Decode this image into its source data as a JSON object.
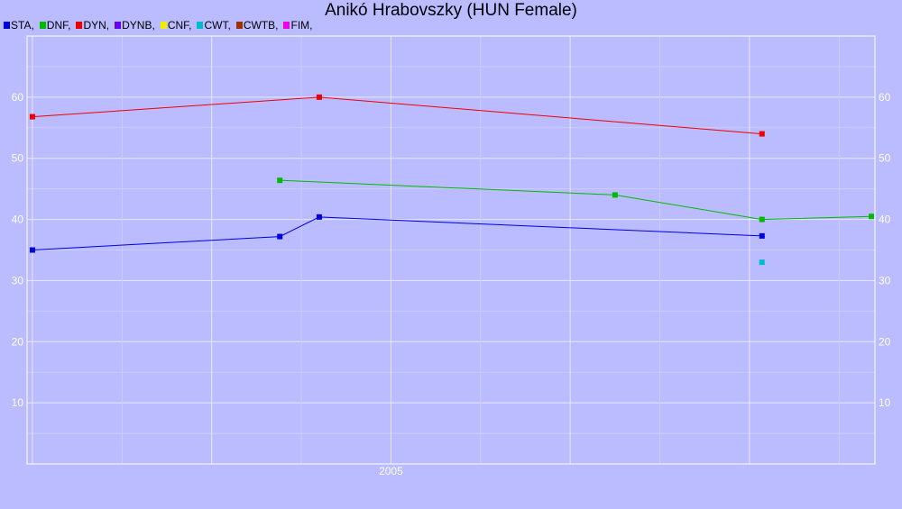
{
  "chart_data": {
    "type": "line",
    "title": "Anikó Hrabovszky (HUN Female)",
    "xlabel": "",
    "ylabel": "",
    "x_axis": {
      "type": "date",
      "ticks": [
        {
          "x": 2005.0,
          "label": "2005"
        }
      ],
      "range": [
        2002.97,
        2007.7
      ]
    },
    "ylim": [
      0,
      70
    ],
    "yticks": [
      10,
      20,
      30,
      40,
      50,
      60
    ],
    "grid": true,
    "legend_position": "top-left",
    "series": [
      {
        "name": "STA",
        "color": "#0000dd",
        "points": [
          [
            2003.0,
            35.0
          ],
          [
            2004.38,
            37.2
          ],
          [
            2004.6,
            40.4
          ],
          [
            2007.07,
            37.3
          ]
        ]
      },
      {
        "name": "DNF",
        "color": "#00bb00",
        "points": [
          [
            2004.38,
            46.4
          ],
          [
            2006.25,
            44.0
          ],
          [
            2007.07,
            40.0
          ],
          [
            2007.68,
            40.5
          ]
        ]
      },
      {
        "name": "DYN",
        "color": "#ee0000",
        "points": [
          [
            2003.0,
            56.8
          ],
          [
            2004.6,
            60.0
          ],
          [
            2007.07,
            54.0
          ]
        ]
      },
      {
        "name": "DYNB",
        "color": "#6600ee",
        "points": []
      },
      {
        "name": "CNF",
        "color": "#eeee00",
        "points": []
      },
      {
        "name": "CWT",
        "color": "#00bbcc",
        "points": [
          [
            2007.07,
            33.0
          ]
        ]
      },
      {
        "name": "CWTB",
        "color": "#993300",
        "points": []
      },
      {
        "name": "FIM",
        "color": "#ee00ee",
        "points": []
      }
    ]
  }
}
